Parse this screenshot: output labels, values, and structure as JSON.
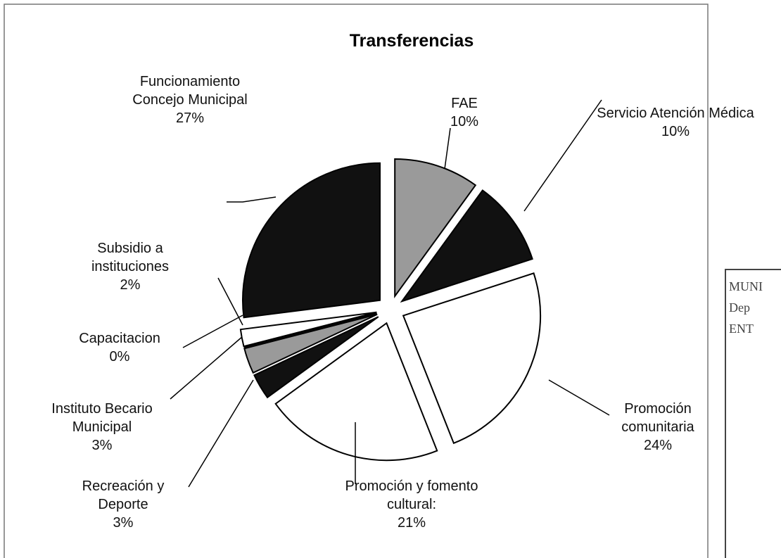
{
  "chart_data": {
    "type": "pie",
    "title": "Transferencias",
    "categories": [
      "FAE",
      "Servicio Atención Médica",
      "Promoción comunitaria",
      "Promoción y fomento cultural:",
      "Recreación y Deporte",
      "Instituto Becario Municipal",
      "Capacitacion",
      "Subsidio a instituciones",
      "Funcionamiento Concejo Municipal"
    ],
    "values": [
      10,
      10,
      24,
      21,
      3,
      3,
      0,
      2,
      27
    ],
    "value_labels": [
      "10%",
      "10%",
      "24%",
      "21%",
      "3%",
      "3%",
      "0%",
      "2%",
      "27%"
    ],
    "colors": [
      "#9a9a9a",
      "#111111",
      "#ffffff",
      "#ffffff",
      "#111111",
      "#9a9a9a",
      "#111111",
      "#ffffff",
      "#111111"
    ]
  },
  "stamp": {
    "lines": [
      "MUNI",
      "Dep",
      "ENT"
    ]
  }
}
